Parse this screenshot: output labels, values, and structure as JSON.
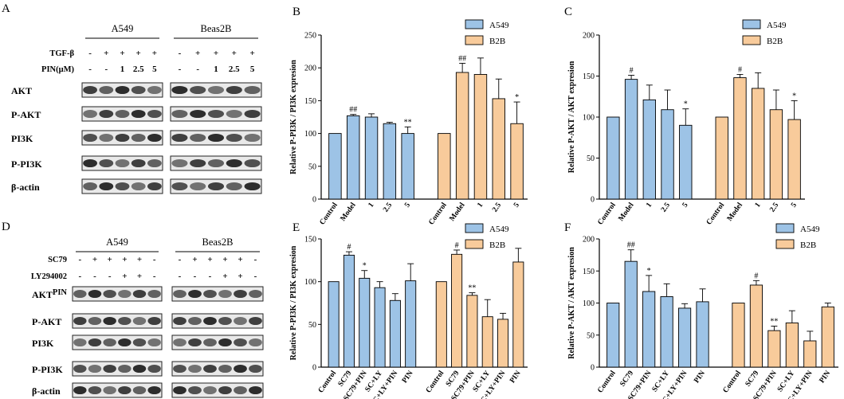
{
  "figure": {
    "panel_letters": [
      "A",
      "B",
      "C",
      "D",
      "E",
      "F"
    ],
    "blots": {
      "A": {
        "cells": [
          "A549",
          "Beas2B"
        ],
        "treatments": [
          {
            "label": "TGF-β",
            "lanes": [
              "-",
              "+",
              "+",
              "+",
              "+"
            ]
          },
          {
            "label": "PIN(μM)",
            "lanes": [
              "-",
              "-",
              "1",
              "2.5",
              "5"
            ]
          }
        ],
        "proteins": [
          "AKT",
          "P-AKT",
          "PI3K",
          "P-PI3K",
          "β-actin"
        ]
      },
      "D": {
        "cells": [
          "A549",
          "Beas2B"
        ],
        "treatments": [
          {
            "label": "SC79",
            "lanes": [
              "-",
              "+",
              "+",
              "+",
              "+",
              "-"
            ]
          },
          {
            "label": "LY294002",
            "lanes": [
              "-",
              "-",
              "-",
              "+",
              "+",
              "-"
            ]
          },
          {
            "label": "PIN",
            "lanes": [
              "-",
              "-",
              "+",
              "-",
              "+",
              "+"
            ]
          }
        ],
        "proteins": [
          "AKT",
          "P-AKT",
          "PI3K",
          "P-PI3K",
          "β-actin"
        ]
      }
    }
  },
  "chart_data": [
    {
      "panel": "B",
      "type": "bar",
      "ylabel": "Relative P-PI3K / PI3K expresion",
      "ylim": [
        0,
        250
      ],
      "ticks": [
        0,
        50,
        100,
        150,
        200,
        250
      ],
      "legend": [
        "A549",
        "B2B"
      ],
      "legend_position": "top-right",
      "colors": {
        "A549": "#9dc3e6",
        "B2B": "#f8cb9b"
      },
      "groups": [
        {
          "name": "A549",
          "categories": [
            "Control",
            "Model",
            "1",
            "2.5",
            "5"
          ],
          "values": [
            100,
            127,
            125,
            115,
            100
          ],
          "errors": [
            0,
            2,
            5,
            2,
            10
          ],
          "marks": [
            "",
            "##",
            "",
            "",
            "**"
          ]
        },
        {
          "name": "B2B",
          "categories": [
            "Control",
            "Model",
            "1",
            "2.5",
            "5"
          ],
          "values": [
            100,
            193,
            190,
            153,
            115
          ],
          "errors": [
            0,
            14,
            25,
            30,
            33
          ],
          "marks": [
            "",
            "##",
            "",
            "",
            "*"
          ]
        }
      ]
    },
    {
      "panel": "C",
      "type": "bar",
      "ylabel": "Relative P-AKT / AKT expresion",
      "ylim": [
        0,
        200
      ],
      "ticks": [
        0,
        50,
        100,
        150,
        200
      ],
      "legend": [
        "A549",
        "B2B"
      ],
      "legend_position": "top-right",
      "colors": {
        "A549": "#9dc3e6",
        "B2B": "#f8cb9b"
      },
      "groups": [
        {
          "name": "A549",
          "categories": [
            "Control",
            "Model",
            "1",
            "2.5",
            "5"
          ],
          "values": [
            100,
            146,
            121,
            109,
            90
          ],
          "errors": [
            0,
            5,
            18,
            24,
            20
          ],
          "marks": [
            "",
            "#",
            "",
            "",
            "*"
          ]
        },
        {
          "name": "B2B",
          "categories": [
            "Control",
            "Model",
            "1",
            "2.5",
            "5"
          ],
          "values": [
            100,
            148,
            135,
            109,
            97
          ],
          "errors": [
            0,
            4,
            19,
            24,
            23
          ],
          "marks": [
            "",
            "#",
            "",
            "",
            "*"
          ]
        }
      ]
    },
    {
      "panel": "E",
      "type": "bar",
      "ylabel": "Relative P-PI3K / PI3K expresion",
      "ylim": [
        0,
        150
      ],
      "ticks": [
        0,
        50,
        100,
        150
      ],
      "legend": [
        "A549",
        "B2B"
      ],
      "legend_position": "top-right",
      "colors": {
        "A549": "#9dc3e6",
        "B2B": "#f8cb9b"
      },
      "groups": [
        {
          "name": "A549",
          "categories": [
            "Control",
            "SC79",
            "SC79+PIN",
            "SC+LY",
            "SC+LY+PIN",
            "PIN"
          ],
          "values": [
            100,
            131,
            104,
            93,
            78,
            101
          ],
          "errors": [
            0,
            4,
            9,
            7,
            8,
            20
          ],
          "marks": [
            "",
            "#",
            "*",
            "",
            "",
            ""
          ]
        },
        {
          "name": "B2B",
          "categories": [
            "Control",
            "SC79",
            "SC79+PIN",
            "SC+LY",
            "SC+LY+PIN",
            "PIN"
          ],
          "values": [
            100,
            132,
            84,
            59,
            56,
            123
          ],
          "errors": [
            0,
            5,
            3,
            20,
            7,
            16
          ],
          "marks": [
            "",
            "#",
            "**",
            "",
            "",
            ""
          ]
        }
      ]
    },
    {
      "panel": "F",
      "type": "bar",
      "ylabel": "Relative P-AKT / AKT expresion",
      "ylim": [
        0,
        200
      ],
      "ticks": [
        0,
        50,
        100,
        150,
        200
      ],
      "legend": [
        "A549",
        "B2B"
      ],
      "legend_position": "top-right",
      "colors": {
        "A549": "#9dc3e6",
        "B2B": "#f8cb9b"
      },
      "groups": [
        {
          "name": "A549",
          "categories": [
            "Control",
            "SC79",
            "SC79+PIN",
            "SC+LY",
            "SC+LY+PIN",
            "PIN"
          ],
          "values": [
            100,
            165,
            118,
            110,
            92,
            102
          ],
          "errors": [
            0,
            18,
            25,
            20,
            7,
            20
          ],
          "marks": [
            "",
            "##",
            "*",
            "",
            "",
            ""
          ]
        },
        {
          "name": "B2B",
          "categories": [
            "Control",
            "SC79",
            "SC79+PIN",
            "SC+LY",
            "SC+LY+PIN",
            "PIN"
          ],
          "values": [
            100,
            128,
            57,
            69,
            41,
            94
          ],
          "errors": [
            0,
            7,
            7,
            19,
            15,
            6
          ],
          "marks": [
            "",
            "#",
            "**",
            "",
            "",
            ""
          ]
        }
      ]
    }
  ]
}
